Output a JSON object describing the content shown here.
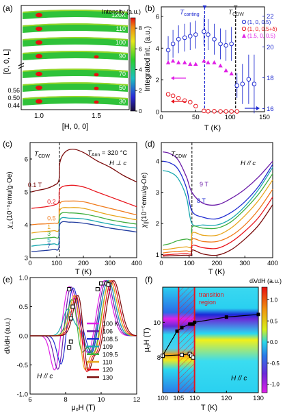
{
  "colors": {
    "red": "#e8141c",
    "blue": "#1f2bd1",
    "magenta": "#e020e6",
    "darkred": "#7a0a0a",
    "orange": "#f07a1a",
    "green": "#3fae3f",
    "teal": "#1aa8b0",
    "purple": "#6a1aa8",
    "navy": "#1f3a9e"
  },
  "chart_data": [
    {
      "panel": "(a)",
      "type": "heatmap",
      "xlabel": "[H, 0, 0]",
      "ylabel": "[0, 0, L]",
      "x_ticks": [
        "1.0",
        "1.5"
      ],
      "y_ticks": [
        "0.44",
        "0.50",
        "0.56"
      ],
      "colorbar_label": "Intensity (a.u.)",
      "colorbar_ticks": [
        "0",
        "2",
        "4",
        "6",
        "8"
      ],
      "colorbar_range": [
        0,
        9
      ],
      "temperatures": [
        "120K",
        "110",
        "100",
        "90",
        "70",
        "50",
        "30"
      ]
    },
    {
      "panel": "(b)",
      "type": "scatter",
      "xlabel": "T (K)",
      "ylabel": "Integrated int. (a.u.)",
      "xlim": [
        0,
        150
      ],
      "ylim": [
        0,
        6.6
      ],
      "y2lim": [
        15.8,
        22.6
      ],
      "x_ticks": [
        "0",
        "50",
        "100",
        "150"
      ],
      "y_ticks": [
        "0",
        "2",
        "4",
        "6"
      ],
      "y2_ticks": [
        "16",
        "18",
        "20",
        "22"
      ],
      "annotations": {
        "t_canting": "T",
        "t_canting_sub": "canting",
        "t_cdw": "T",
        "t_cdw_sub": "CDW"
      },
      "vlines": [
        63,
        108
      ],
      "series": [
        {
          "name": "(1, 0, 0.5)",
          "axis": "right",
          "x": [
            10,
            17,
            25,
            34,
            42,
            50,
            62,
            68,
            77,
            86,
            94,
            102,
            110,
            118,
            127,
            135
          ],
          "y": [
            19.8,
            20.2,
            20.5,
            20.6,
            20.7,
            20.8,
            21.0,
            20.8,
            20.5,
            20.2,
            20.1,
            20.2,
            17.5,
            17.6,
            17.9,
            17.6
          ],
          "err": [
            0.9,
            0.9,
            0.9,
            0.9,
            0.9,
            0.9,
            0.9,
            1.0,
            1.0,
            1.0,
            1.0,
            1.1,
            0.8,
            1.3,
            1.6,
            1.9
          ]
        },
        {
          "name": "(1, 0, 0.5+δ)",
          "axis": "left",
          "x": [
            10,
            17,
            25,
            34,
            42,
            50,
            62,
            68,
            77,
            86,
            94,
            102,
            110
          ],
          "y": [
            1.1,
            1.0,
            0.85,
            0.7,
            0.6,
            0.35,
            0.05,
            0.03,
            0.03,
            0.02,
            0.02,
            0.02,
            0.02
          ]
        },
        {
          "name": "(1.5, 0, 0.5)",
          "axis": "left",
          "x": [
            10,
            17,
            25,
            34,
            42,
            50,
            62,
            68,
            77,
            86,
            94,
            102
          ],
          "y": [
            3.1,
            3.2,
            3.1,
            3.1,
            3.0,
            3.0,
            3.2,
            3.1,
            3.1,
            2.9,
            2.6,
            2.4
          ]
        }
      ]
    },
    {
      "panel": "(c)",
      "type": "line",
      "xlabel": "T (K)",
      "ylabel": "χ",
      "ylabel_sub": "⊥",
      "ylabel_unit": "(10⁻⁵emu/g·Oe)",
      "xlim": [
        0,
        400
      ],
      "ylim": [
        3.0,
        6.5
      ],
      "x_ticks": [
        "0",
        "100",
        "200",
        "300",
        "400"
      ],
      "y_ticks": [
        "3",
        "4",
        "5",
        "6"
      ],
      "annotations": {
        "tcdw": "T",
        "tcdw_sub": "CDW",
        "tann": "T",
        "tann_sub": "Ann",
        "tann_value": " = 320 °C",
        "field_dir": "H ⊥ c"
      },
      "vline": 110,
      "series": [
        {
          "name": "0.1 T",
          "color": "#7a0a0a",
          "x": [
            5,
            30,
            60,
            90,
            108,
            112,
            130,
            160,
            200,
            250,
            300,
            350,
            400
          ],
          "y": [
            5.0,
            5.05,
            5.1,
            5.2,
            5.35,
            5.9,
            6.2,
            6.3,
            6.2,
            5.95,
            5.75,
            5.5,
            5.3
          ]
        },
        {
          "name": "0.2",
          "color": "#e8141c",
          "x": [
            5,
            30,
            60,
            90,
            108,
            112,
            150,
            200,
            250,
            300,
            350,
            400
          ],
          "y": [
            4.5,
            4.52,
            4.55,
            4.6,
            4.7,
            5.1,
            5.2,
            5.15,
            5.0,
            4.85,
            4.7,
            4.55
          ]
        },
        {
          "name": "0.5",
          "color": "#f07a1a",
          "x": [
            5,
            30,
            60,
            90,
            108,
            112,
            150,
            200,
            250,
            300,
            350,
            400
          ],
          "y": [
            4.0,
            4.02,
            4.03,
            4.05,
            4.1,
            4.65,
            4.72,
            4.7,
            4.6,
            4.5,
            4.4,
            4.3
          ]
        },
        {
          "name": "1",
          "color": "#e8a51a",
          "x": [
            5,
            30,
            60,
            90,
            108,
            112,
            150,
            200,
            250,
            300,
            350,
            400
          ],
          "y": [
            3.75,
            3.78,
            3.8,
            3.82,
            3.85,
            4.45,
            4.52,
            4.5,
            4.4,
            4.3,
            4.22,
            4.15
          ]
        },
        {
          "name": "3",
          "color": "#3fae3f",
          "x": [
            5,
            30,
            60,
            90,
            108,
            112,
            150,
            200,
            250,
            300,
            350,
            400
          ],
          "y": [
            3.55,
            3.58,
            3.6,
            3.62,
            3.65,
            4.3,
            4.36,
            4.33,
            4.25,
            4.15,
            4.08,
            4.02
          ]
        },
        {
          "name": "5",
          "color": "#1aa8b0",
          "x": [
            5,
            30,
            60,
            90,
            108,
            112,
            150,
            200,
            250,
            300,
            350,
            400
          ],
          "y": [
            3.35,
            3.38,
            3.4,
            3.42,
            3.45,
            4.15,
            4.2,
            4.18,
            4.1,
            4.02,
            3.95,
            3.9
          ]
        },
        {
          "name": "7",
          "color": "#1f3a9e",
          "x": [
            5,
            30,
            60,
            90,
            108,
            112,
            150,
            200,
            250,
            300,
            350,
            400
          ],
          "y": [
            3.18,
            3.2,
            3.22,
            3.25,
            3.3,
            4.02,
            4.08,
            4.05,
            3.98,
            3.9,
            3.84,
            3.78
          ]
        }
      ]
    },
    {
      "panel": "(d)",
      "type": "line",
      "xlabel": "T (K)",
      "ylabel": "χ",
      "ylabel_sub": "||",
      "ylabel_unit": "(10⁻⁵emu/g·Oe)",
      "xlim": [
        0,
        400
      ],
      "ylim": [
        0.9,
        4.6
      ],
      "x_ticks": [
        "0",
        "100",
        "200",
        "300",
        "400"
      ],
      "y_ticks": [
        "1",
        "2",
        "3",
        "4"
      ],
      "annotations": {
        "tcdw": "T",
        "tcdw_sub": "CDW",
        "field_dir": "H // c",
        "label_9t": "9 T",
        "label_8t": "8 T"
      },
      "vline": 110,
      "series": [
        {
          "color": "#6a1aa8",
          "x": [
            5,
            30,
            60,
            90,
            110,
            150,
            200,
            250,
            300,
            350,
            400
          ],
          "y": [
            4.3,
            4.25,
            4.05,
            3.5,
            3.0,
            2.65,
            2.6,
            2.8,
            3.1,
            3.5,
            4.0
          ]
        },
        {
          "color": "#1f2bd1",
          "x": [
            5,
            30,
            60,
            90,
            110,
            150,
            200,
            250,
            300,
            350,
            400
          ],
          "y": [
            4.0,
            3.95,
            3.75,
            3.15,
            2.4,
            2.2,
            2.15,
            2.35,
            2.7,
            3.2,
            3.9
          ]
        },
        {
          "color": "#1aa8b0",
          "x": [
            5,
            30,
            60,
            90,
            110,
            150,
            200,
            250,
            300,
            350,
            400
          ],
          "y": [
            3.7,
            3.65,
            3.45,
            2.85,
            2.0,
            1.95,
            1.95,
            2.15,
            2.55,
            3.1,
            3.8
          ]
        },
        {
          "color": "#3fae3f",
          "x": [
            5,
            30,
            60,
            90,
            108,
            112,
            150,
            200,
            250,
            300,
            350,
            400
          ],
          "y": [
            1.3,
            1.35,
            1.45,
            1.5,
            1.5,
            1.9,
            1.85,
            1.85,
            2.05,
            2.45,
            2.95,
            3.6
          ]
        },
        {
          "color": "#e8a51a",
          "x": [
            5,
            30,
            60,
            90,
            108,
            112,
            150,
            200,
            250,
            300,
            350,
            400
          ],
          "y": [
            1.15,
            1.18,
            1.22,
            1.25,
            1.25,
            1.7,
            1.62,
            1.62,
            1.85,
            2.25,
            2.75,
            3.4
          ]
        },
        {
          "color": "#f07a1a",
          "x": [
            5,
            30,
            60,
            90,
            108,
            112,
            150,
            200,
            250,
            300,
            350,
            400
          ],
          "y": [
            1.05,
            1.08,
            1.1,
            1.12,
            1.12,
            1.5,
            1.42,
            1.42,
            1.6,
            1.95,
            2.45,
            3.1
          ]
        },
        {
          "color": "#e8141c",
          "x": [
            5,
            30,
            60,
            90,
            108,
            112,
            150,
            200,
            250,
            300,
            350,
            400
          ],
          "y": [
            0.98,
            1.0,
            1.02,
            1.03,
            1.03,
            1.3,
            1.22,
            1.2,
            1.4,
            1.75,
            2.2,
            2.85
          ]
        },
        {
          "color": "#7a0a0a",
          "x": [
            5,
            30,
            60,
            90,
            108,
            112,
            150,
            200,
            250,
            300,
            350,
            400
          ],
          "y": [
            0.95,
            0.96,
            0.97,
            0.98,
            0.98,
            1.15,
            1.02,
            0.98,
            1.15,
            1.5,
            1.95,
            2.6
          ]
        }
      ]
    },
    {
      "panel": "(e)",
      "type": "line",
      "xlabel": "μ",
      "xlabel_sub": "0",
      "xlabel_rest": "H (T)",
      "ylabel": "dλ/dH (a.u.)",
      "xlim": [
        6,
        12
      ],
      "ylim": [
        -1.0,
        1.0
      ],
      "x_ticks": [
        "6",
        "8",
        "10",
        "12"
      ],
      "y_ticks": [
        "-1.0",
        "-0.5",
        "0.0",
        "0.5",
        "1.0"
      ],
      "annotations": {
        "field_dir": "H // c"
      },
      "series": [
        {
          "name": "100 K",
          "color": "#e020e6",
          "x0": 7.4,
          "x1": 8.2,
          "x2": 10.2,
          "depth": 0.62
        },
        {
          "name": "106",
          "color": "#6a1aa8",
          "x0": 7.6,
          "x1": 8.3,
          "x2": 10.3,
          "depth": 0.64
        },
        {
          "name": "108.5",
          "color": "#1f2bd1",
          "x0": 7.8,
          "x1": 8.4,
          "x2": 10.4,
          "depth": 0.6
        },
        {
          "name": "109",
          "color": "#1aa8b0",
          "x0": 8.4,
          "x1": 8.3,
          "x2": 10.4,
          "depth": 0.5
        },
        {
          "name": "109.5",
          "color": "#3fae3f",
          "x0": 8.8,
          "x1": 8.5,
          "x2": 10.5,
          "depth": 0.7
        },
        {
          "name": "110",
          "color": "#e8a51a",
          "x0": 9.0,
          "x1": 8.6,
          "x2": 10.5,
          "depth": 0.88
        },
        {
          "name": "120",
          "color": "#e8141c",
          "x0": 9.1,
          "x1": 8.7,
          "x2": 10.6,
          "depth": 0.92
        },
        {
          "name": "130",
          "color": "#7a0a0a",
          "x0": 9.2,
          "x1": 8.8,
          "x2": 10.7,
          "depth": 0.9
        }
      ]
    },
    {
      "panel": "(f)",
      "type": "heatmap",
      "xlabel": "T (K)",
      "ylabel": "μ",
      "ylabel_sub": "0",
      "ylabel_rest": "H (T)",
      "xlim": [
        100,
        130
      ],
      "ylim": [
        6,
        12
      ],
      "x_ticks": [
        "100",
        "105",
        "110",
        "120",
        "130"
      ],
      "y_ticks": [
        "8",
        "10"
      ],
      "colorbar_label": "dλ/dH (a.u.)",
      "colorbar_ticks": [
        "-1.0",
        "-0.5",
        "0.0",
        "0.5",
        "1.0"
      ],
      "colorbar_range": [
        -1.2,
        1.3
      ],
      "annotations": {
        "region_line1": "transition",
        "region_line2": "region",
        "field_dir": "H // c"
      },
      "region": [
        105,
        110
      ],
      "upper_branch": {
        "x": [
          100,
          104.5,
          106,
          108.5,
          109,
          109.5,
          110,
          120,
          130
        ],
        "y": [
          8.1,
          9.5,
          9.7,
          9.9,
          9.9,
          9.9,
          10.0,
          10.3,
          10.45
        ]
      },
      "lower_branch": {
        "x": [
          100,
          106,
          108.5,
          109,
          109.5
        ],
        "y": [
          8.1,
          8.15,
          8.2,
          8.1,
          8.0
        ]
      }
    }
  ]
}
